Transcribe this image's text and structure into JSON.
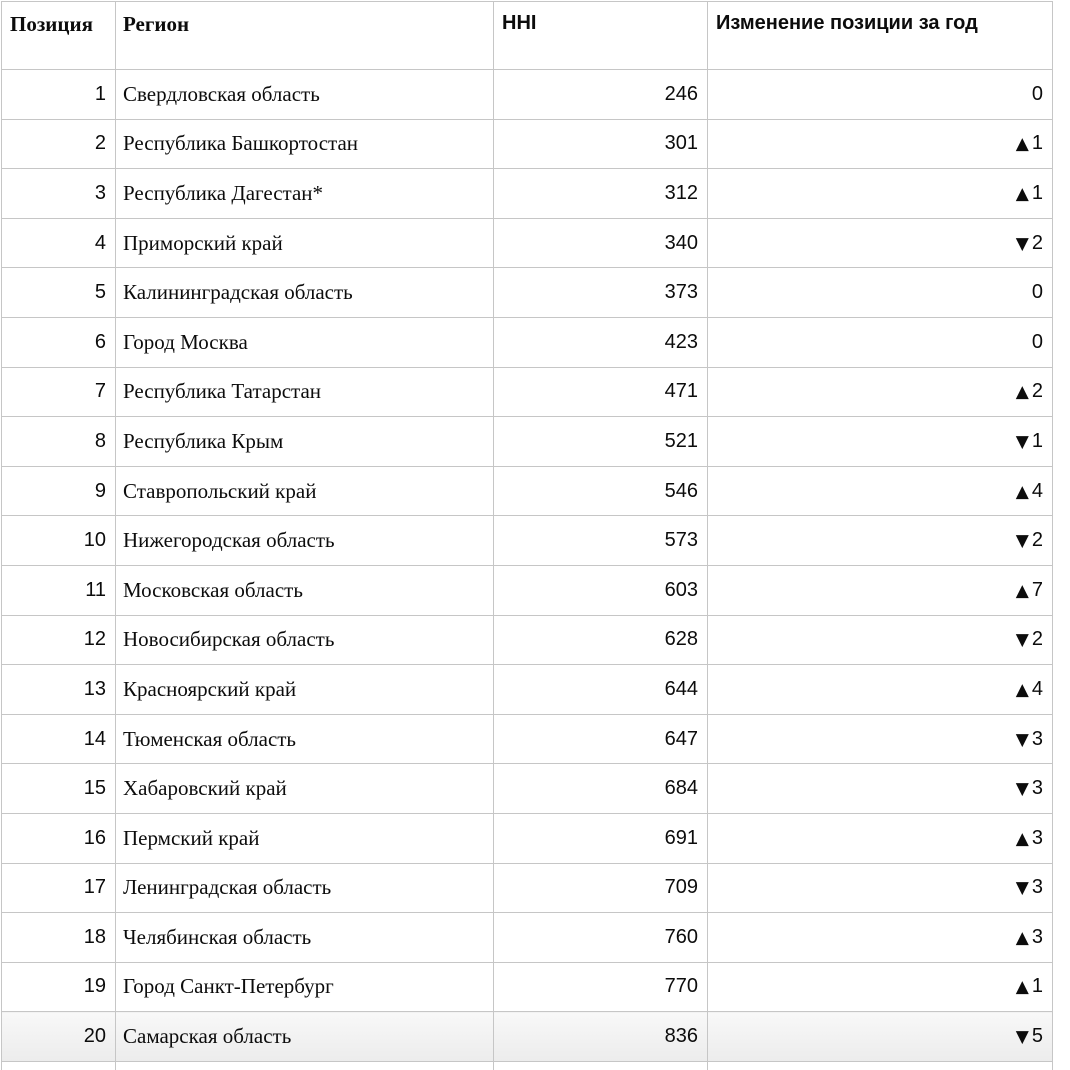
{
  "table": {
    "headers": {
      "position": "Позиция",
      "region": "Регион",
      "hhi": "HHI",
      "change": "Изменение позиции за год"
    },
    "rows": [
      {
        "position": "1",
        "region": "Свердловская область",
        "hhi": "246",
        "change_dir": "none",
        "change_value": "0",
        "highlighted": false
      },
      {
        "position": "2",
        "region": "Республика Башкортостан",
        "hhi": "301",
        "change_dir": "up",
        "change_value": "1",
        "highlighted": false
      },
      {
        "position": "3",
        "region": "Республика Дагестан*",
        "hhi": "312",
        "change_dir": "up",
        "change_value": "1",
        "highlighted": false
      },
      {
        "position": "4",
        "region": "Приморский край",
        "hhi": "340",
        "change_dir": "down",
        "change_value": "2",
        "highlighted": false
      },
      {
        "position": "5",
        "region": "Калининградская область",
        "hhi": "373",
        "change_dir": "none",
        "change_value": "0",
        "highlighted": false
      },
      {
        "position": "6",
        "region": "Город Москва",
        "hhi": "423",
        "change_dir": "none",
        "change_value": "0",
        "highlighted": false
      },
      {
        "position": "7",
        "region": "Республика Татарстан",
        "hhi": "471",
        "change_dir": "up",
        "change_value": "2",
        "highlighted": false
      },
      {
        "position": "8",
        "region": "Республика Крым",
        "hhi": "521",
        "change_dir": "down",
        "change_value": "1",
        "highlighted": false
      },
      {
        "position": "9",
        "region": "Ставропольский край",
        "hhi": "546",
        "change_dir": "up",
        "change_value": "4",
        "highlighted": false
      },
      {
        "position": "10",
        "region": "Нижегородская область",
        "hhi": "573",
        "change_dir": "down",
        "change_value": "2",
        "highlighted": false
      },
      {
        "position": "11",
        "region": "Московская область",
        "hhi": "603",
        "change_dir": "up",
        "change_value": "7",
        "highlighted": false
      },
      {
        "position": "12",
        "region": "Новосибирская область",
        "hhi": "628",
        "change_dir": "down",
        "change_value": "2",
        "highlighted": false
      },
      {
        "position": "13",
        "region": "Красноярский край",
        "hhi": "644",
        "change_dir": "up",
        "change_value": "4",
        "highlighted": false
      },
      {
        "position": "14",
        "region": "Тюменская область",
        "hhi": "647",
        "change_dir": "down",
        "change_value": "3",
        "highlighted": false
      },
      {
        "position": "15",
        "region": "Хабаровский край",
        "hhi": "684",
        "change_dir": "down",
        "change_value": "3",
        "highlighted": false
      },
      {
        "position": "16",
        "region": "Пермский край",
        "hhi": "691",
        "change_dir": "up",
        "change_value": "3",
        "highlighted": false
      },
      {
        "position": "17",
        "region": "Ленинградская область",
        "hhi": "709",
        "change_dir": "down",
        "change_value": "3",
        "highlighted": false
      },
      {
        "position": "18",
        "region": "Челябинская область",
        "hhi": "760",
        "change_dir": "up",
        "change_value": "3",
        "highlighted": false
      },
      {
        "position": "19",
        "region": "Город Санкт-Петербург",
        "hhi": "770",
        "change_dir": "up",
        "change_value": "1",
        "highlighted": false
      },
      {
        "position": "20",
        "region": "Самарская область",
        "hhi": "836",
        "change_dir": "down",
        "change_value": "5",
        "highlighted": true
      }
    ]
  },
  "icons": {
    "up": "▲",
    "down": "▼"
  },
  "colors": {
    "up_green": "#58dc58",
    "down_red": "#ee3426",
    "neutral_orange": "#efa32f",
    "gridline": "#c6c6c6"
  },
  "chart_data": {
    "type": "table",
    "title": "",
    "columns": [
      "Позиция",
      "Регион",
      "HHI",
      "Изменение позиции за год"
    ],
    "rows": [
      [
        1,
        "Свердловская область",
        246,
        0
      ],
      [
        2,
        "Республика Башкортостан",
        301,
        1
      ],
      [
        3,
        "Республика Дагестан*",
        312,
        1
      ],
      [
        4,
        "Приморский край",
        340,
        -2
      ],
      [
        5,
        "Калининградская область",
        373,
        0
      ],
      [
        6,
        "Город Москва",
        423,
        0
      ],
      [
        7,
        "Республика Татарстан",
        471,
        2
      ],
      [
        8,
        "Республика Крым",
        521,
        -1
      ],
      [
        9,
        "Ставропольский край",
        546,
        4
      ],
      [
        10,
        "Нижегородская область",
        573,
        -2
      ],
      [
        11,
        "Московская область",
        603,
        7
      ],
      [
        12,
        "Новосибирская область",
        628,
        -2
      ],
      [
        13,
        "Красноярский край",
        644,
        4
      ],
      [
        14,
        "Тюменская область",
        647,
        -3
      ],
      [
        15,
        "Хабаровский край",
        684,
        -3
      ],
      [
        16,
        "Пермский край",
        691,
        3
      ],
      [
        17,
        "Ленинградская область",
        709,
        -3
      ],
      [
        18,
        "Челябинская область",
        760,
        3
      ],
      [
        19,
        "Город Санкт-Петербург",
        770,
        1
      ],
      [
        20,
        "Самарская область",
        836,
        -5
      ]
    ]
  }
}
